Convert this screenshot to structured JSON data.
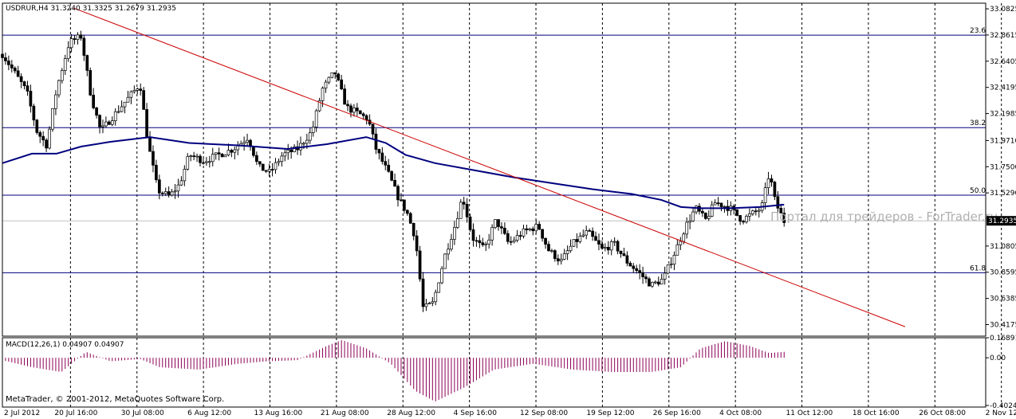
{
  "header": {
    "symbol_line": "USDRUR,H4  31.3240 31.3325 31.2679 31.2935",
    "macd_line": "MACD(12,26,1) 0.04907 0.04907",
    "copyright": "MetaTrader, © 2001-2012, MetaQuotes Software Corp.",
    "watermark": "Портал для трейдеров - ForTrader.ru"
  },
  "colors": {
    "background": "#ffffff",
    "grid": "#000000",
    "candle": "#000000",
    "moving_average": "#00007f",
    "trendline": "#cc0000",
    "fibo": "#00007f",
    "current_price_label_bg": "#000000",
    "macd_hist": "#8b0057"
  },
  "chart_data": {
    "type": "candlestick",
    "title": "USDRUR,H4",
    "ylim": [
      30.32,
      33.13
    ],
    "y_ticks": [
      "33.0825",
      "32.8615",
      "32.6405",
      "32.4195",
      "32.1985",
      "31.9710",
      "31.7500",
      "31.5290",
      "31.0805",
      "30.8595",
      "30.6385",
      "30.4175"
    ],
    "current_price": "31.2935",
    "x_labels": [
      "2 Jul 2012",
      "20 Jul 16:00",
      "30 Jul 08:00",
      "6 Aug 12:00",
      "13 Aug 16:00",
      "21 Aug 08:00",
      "28 Aug 12:00",
      "4 Sep 16:00",
      "12 Sep 08:00",
      "19 Sep 12:00",
      "26 Sep 16:00",
      "4 Oct 08:00",
      "11 Oct 12:00",
      "18 Oct 16:00",
      "26 Oct 08:00",
      "2 Nov 12:00"
    ],
    "fibonacci_levels": [
      {
        "label": "23.6",
        "price": 32.86
      },
      {
        "label": "38.2",
        "price": 32.08
      },
      {
        "label": "50.0",
        "price": 31.51
      },
      {
        "label": "61.8",
        "price": 30.855
      }
    ],
    "trendline": {
      "start": [
        0.072,
        33.09
      ],
      "end": [
        0.918,
        30.4
      ]
    },
    "close_path": [
      [
        0,
        32.7
      ],
      [
        0.012,
        32.55
      ],
      [
        0.025,
        32.38
      ],
      [
        0.035,
        32.05
      ],
      [
        0.045,
        31.93
      ],
      [
        0.055,
        32.4
      ],
      [
        0.068,
        32.8
      ],
      [
        0.08,
        32.85
      ],
      [
        0.09,
        32.35
      ],
      [
        0.1,
        32.05
      ],
      [
        0.115,
        32.2
      ],
      [
        0.13,
        32.35
      ],
      [
        0.14,
        32.45
      ],
      [
        0.148,
        31.95
      ],
      [
        0.158,
        31.55
      ],
      [
        0.17,
        31.5
      ],
      [
        0.18,
        31.6
      ],
      [
        0.19,
        31.85
      ],
      [
        0.205,
        31.8
      ],
      [
        0.22,
        31.85
      ],
      [
        0.235,
        31.9
      ],
      [
        0.25,
        32.0
      ],
      [
        0.26,
        31.75
      ],
      [
        0.272,
        31.7
      ],
      [
        0.285,
        31.85
      ],
      [
        0.3,
        31.9
      ],
      [
        0.315,
        32.05
      ],
      [
        0.325,
        32.4
      ],
      [
        0.338,
        32.55
      ],
      [
        0.35,
        32.25
      ],
      [
        0.362,
        32.2
      ],
      [
        0.372,
        32.15
      ],
      [
        0.38,
        31.9
      ],
      [
        0.392,
        31.7
      ],
      [
        0.402,
        31.5
      ],
      [
        0.412,
        31.35
      ],
      [
        0.42,
        31.15
      ],
      [
        0.428,
        30.55
      ],
      [
        0.438,
        30.6
      ],
      [
        0.45,
        31.0
      ],
      [
        0.46,
        31.25
      ],
      [
        0.468,
        31.5
      ],
      [
        0.478,
        31.15
      ],
      [
        0.49,
        31.05
      ],
      [
        0.502,
        31.3
      ],
      [
        0.515,
        31.1
      ],
      [
        0.53,
        31.2
      ],
      [
        0.545,
        31.25
      ],
      [
        0.555,
        31.05
      ],
      [
        0.568,
        30.95
      ],
      [
        0.58,
        31.1
      ],
      [
        0.595,
        31.2
      ],
      [
        0.61,
        31.05
      ],
      [
        0.622,
        31.1
      ],
      [
        0.635,
        30.95
      ],
      [
        0.648,
        30.85
      ],
      [
        0.66,
        30.75
      ],
      [
        0.672,
        30.8
      ],
      [
        0.685,
        31.05
      ],
      [
        0.695,
        31.25
      ],
      [
        0.705,
        31.4
      ],
      [
        0.715,
        31.3
      ],
      [
        0.725,
        31.45
      ],
      [
        0.74,
        31.4
      ],
      [
        0.752,
        31.3
      ],
      [
        0.762,
        31.35
      ],
      [
        0.772,
        31.4
      ],
      [
        0.78,
        31.7
      ],
      [
        0.786,
        31.45
      ],
      [
        0.795,
        31.29
      ]
    ],
    "ma_path": [
      [
        0,
        31.78
      ],
      [
        0.03,
        31.86
      ],
      [
        0.055,
        31.86
      ],
      [
        0.08,
        31.92
      ],
      [
        0.11,
        31.96
      ],
      [
        0.15,
        32.0
      ],
      [
        0.19,
        31.95
      ],
      [
        0.24,
        31.93
      ],
      [
        0.29,
        31.9
      ],
      [
        0.33,
        31.94
      ],
      [
        0.37,
        32.0
      ],
      [
        0.39,
        31.95
      ],
      [
        0.41,
        31.85
      ],
      [
        0.44,
        31.78
      ],
      [
        0.48,
        31.72
      ],
      [
        0.52,
        31.66
      ],
      [
        0.56,
        31.61
      ],
      [
        0.6,
        31.56
      ],
      [
        0.64,
        31.52
      ],
      [
        0.67,
        31.47
      ],
      [
        0.69,
        31.41
      ],
      [
        0.71,
        31.4
      ],
      [
        0.74,
        31.4
      ],
      [
        0.77,
        31.41
      ],
      [
        0.795,
        31.43
      ]
    ],
    "macd": {
      "ylim": [
        -0.4024,
        0.16891
      ],
      "y_ticks": [
        "0.16891",
        "0.00",
        "-0.4024"
      ],
      "path": [
        [
          0,
          -0.02
        ],
        [
          0.03,
          -0.08
        ],
        [
          0.06,
          -0.12
        ],
        [
          0.085,
          0.05
        ],
        [
          0.11,
          -0.03
        ],
        [
          0.14,
          -0.01
        ],
        [
          0.16,
          -0.08
        ],
        [
          0.2,
          -0.1
        ],
        [
          0.24,
          -0.05
        ],
        [
          0.27,
          -0.03
        ],
        [
          0.3,
          -0.02
        ],
        [
          0.33,
          0.1
        ],
        [
          0.345,
          0.15
        ],
        [
          0.37,
          0.08
        ],
        [
          0.395,
          -0.05
        ],
        [
          0.42,
          -0.28
        ],
        [
          0.44,
          -0.37
        ],
        [
          0.47,
          -0.25
        ],
        [
          0.5,
          -0.1
        ],
        [
          0.54,
          -0.05
        ],
        [
          0.58,
          -0.1
        ],
        [
          0.62,
          -0.12
        ],
        [
          0.66,
          -0.12
        ],
        [
          0.69,
          -0.08
        ],
        [
          0.71,
          0.08
        ],
        [
          0.735,
          0.14
        ],
        [
          0.76,
          0.1
        ],
        [
          0.78,
          0.04
        ],
        [
          0.795,
          0.05
        ]
      ]
    }
  }
}
